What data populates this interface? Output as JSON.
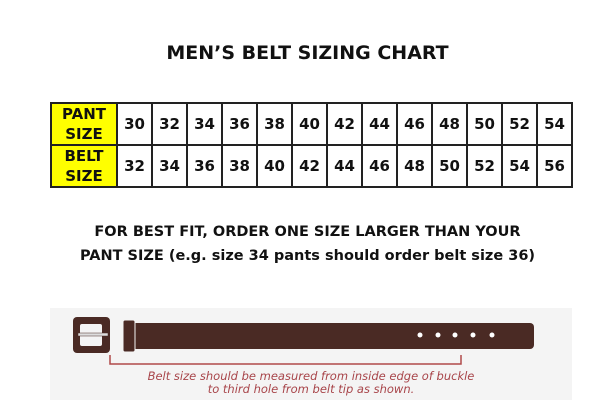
{
  "title": "MEN’S BELT SIZING CHART",
  "table": {
    "rows": [
      {
        "header": [
          "PANT",
          "SIZE"
        ],
        "values": [
          "30",
          "32",
          "34",
          "36",
          "38",
          "40",
          "42",
          "44",
          "46",
          "48",
          "50",
          "52",
          "54"
        ]
      },
      {
        "header": [
          "BELT",
          "SIZE"
        ],
        "values": [
          "32",
          "34",
          "36",
          "38",
          "40",
          "42",
          "44",
          "46",
          "48",
          "50",
          "52",
          "54",
          "56"
        ]
      }
    ],
    "header_color": "#ffff00"
  },
  "note": {
    "line1": "FOR BEST FIT, ORDER ONE SIZE LARGER THAN YOUR",
    "line2": "PANT SIZE (e.g. size 34 pants should order belt size 36)"
  },
  "belt_diagram": {
    "caption_line1": "Belt size should be measured from inside edge of buckle",
    "caption_line2": "to third hole from belt tip as shown.",
    "belt_color": "#4a2a24",
    "measure_color": "#b04a4a"
  }
}
